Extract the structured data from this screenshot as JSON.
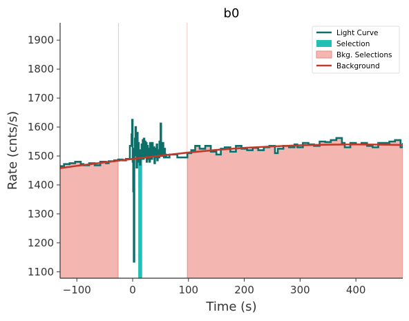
{
  "chart_data": {
    "type": "line",
    "title": "b0",
    "xlabel": "Time (s)",
    "ylabel": "Rate (cnts/s)",
    "xlim": [
      -130,
      484
    ],
    "ylim": [
      1078,
      1960
    ],
    "xticks": [
      -100,
      0,
      100,
      200,
      300,
      400
    ],
    "yticks": [
      1100,
      1200,
      1300,
      1400,
      1500,
      1600,
      1700,
      1800,
      1900
    ],
    "xtick_labels": [
      "−100",
      "0",
      "100",
      "200",
      "300",
      "400"
    ],
    "ytick_labels": [
      "1100",
      "1200",
      "1300",
      "1400",
      "1500",
      "1600",
      "1700",
      "1800",
      "1900"
    ],
    "grid": false,
    "legend_position": "top-right",
    "legend": [
      {
        "label": "Light Curve",
        "kind": "line",
        "color": "#0d6e6a"
      },
      {
        "label": "Selection",
        "kind": "patch",
        "color": "#22c0b4"
      },
      {
        "label": "Bkg. Selections",
        "kind": "patch",
        "color": "#f4b6b1",
        "edge": "#e88a84"
      },
      {
        "label": "Background",
        "kind": "line",
        "color": "#c0392b"
      }
    ],
    "selection": [
      10,
      17
    ],
    "bkg_selections": [
      [
        -130,
        -26
      ],
      [
        98,
        484
      ]
    ],
    "background_fit": {
      "x": [
        -130,
        -100,
        -50,
        0,
        50,
        100,
        150,
        200,
        250,
        300,
        350,
        400,
        450,
        484
      ],
      "y": [
        1458,
        1466,
        1478,
        1490,
        1501,
        1512,
        1521,
        1528,
        1533,
        1537,
        1539,
        1540,
        1539,
        1538
      ]
    },
    "series": [
      {
        "name": "Light Curve",
        "step": true,
        "x": [
          -130,
          -123,
          -113,
          -103,
          -93,
          -88,
          -78,
          -68,
          -58,
          -48,
          -43,
          -33,
          -26,
          -18,
          -12,
          -5,
          -2,
          -1,
          0,
          1,
          2,
          3,
          4,
          5,
          6,
          7,
          8,
          9,
          10,
          11,
          12,
          13,
          14,
          15,
          16,
          17,
          18,
          19,
          20,
          21,
          22,
          23,
          24,
          25,
          26,
          27,
          28,
          29,
          30,
          31,
          32,
          33,
          34,
          35,
          36,
          37,
          38,
          39,
          40,
          41,
          42,
          43,
          44,
          45,
          46,
          47,
          48,
          49,
          50,
          51,
          52,
          53,
          54,
          55,
          56,
          57,
          58,
          60,
          66,
          80,
          98,
          105,
          112,
          120,
          130,
          140,
          150,
          158,
          165,
          175,
          185,
          195,
          205,
          215,
          225,
          235,
          245,
          255,
          260,
          270,
          280,
          290,
          295,
          305,
          315,
          325,
          335,
          345,
          355,
          365,
          375,
          380,
          390,
          400,
          410,
          420,
          430,
          440,
          450,
          460,
          470,
          480,
          484
        ],
        "y": [
          1465,
          1472,
          1475,
          1480,
          1472,
          1468,
          1475,
          1468,
          1480,
          1475,
          1482,
          1485,
          1488,
          1485,
          1490,
          1535,
          1575,
          1625,
          1480,
          1378,
          1135,
          1525,
          1560,
          1600,
          1502,
          1460,
          1580,
          1530,
          1545,
          1480,
          1510,
          1470,
          1520,
          1490,
          1540,
          1505,
          1555,
          1490,
          1560,
          1520,
          1550,
          1500,
          1545,
          1480,
          1535,
          1490,
          1525,
          1505,
          1480,
          1545,
          1500,
          1520,
          1490,
          1545,
          1510,
          1500,
          1530,
          1475,
          1525,
          1505,
          1495,
          1540,
          1485,
          1520,
          1510,
          1495,
          1550,
          1500,
          1612,
          1515,
          1520,
          1500,
          1545,
          1510,
          1495,
          1525,
          1505,
          1495,
          1505,
          1495,
          1510,
          1520,
          1535,
          1525,
          1535,
          1515,
          1505,
          1525,
          1530,
          1515,
          1535,
          1525,
          1520,
          1528,
          1520,
          1530,
          1535,
          1510,
          1525,
          1535,
          1530,
          1540,
          1530,
          1545,
          1540,
          1535,
          1550,
          1548,
          1555,
          1562,
          1545,
          1530,
          1545,
          1540,
          1545,
          1535,
          1530,
          1545,
          1545,
          1550,
          1555,
          1530,
          1545
        ]
      }
    ]
  }
}
